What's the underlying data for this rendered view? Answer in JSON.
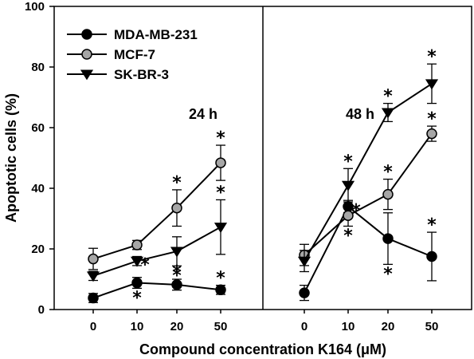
{
  "chart_data": {
    "type": "line",
    "ylabel": "Apoptotic cells (%)",
    "xlabel": "Compound concentration K164 (μM)",
    "ylim": [
      0,
      100
    ],
    "yticks": [
      0,
      20,
      40,
      60,
      80,
      100
    ],
    "categories": [
      "0",
      "10",
      "20",
      "50"
    ],
    "legend": {
      "position": "top-left"
    },
    "series_styles": [
      {
        "name": "MDA-MB-231",
        "marker": "circle",
        "fill": "#000000"
      },
      {
        "name": "MCF-7",
        "marker": "circle",
        "fill": "#a6a6a6"
      },
      {
        "name": "SK-BR-3",
        "marker": "triangle-down",
        "fill": "#000000"
      }
    ],
    "panels": [
      {
        "label": "24 h",
        "series": [
          {
            "name": "MDA-MB-231",
            "values": [
              3.8,
              8.8,
              8.2,
              6.5
            ],
            "errors": [
              1.5,
              1.8,
              1.8,
              1.5
            ],
            "sig": [
              false,
              "below",
              "above",
              "above"
            ]
          },
          {
            "name": "MCF-7",
            "values": [
              16.7,
              21.3,
              33.5,
              48.4
            ],
            "errors": [
              3.5,
              1.5,
              6.0,
              5.8
            ],
            "sig": [
              false,
              false,
              "above",
              "above"
            ]
          },
          {
            "name": "SK-BR-3",
            "values": [
              11.1,
              16.0,
              19.2,
              27.2
            ],
            "errors": [
              1.5,
              1.5,
              4.8,
              9.0
            ],
            "sig": [
              false,
              "right",
              "below",
              "above"
            ]
          }
        ]
      },
      {
        "label": "48 h",
        "series": [
          {
            "name": "MDA-MB-231",
            "values": [
              5.5,
              34.0,
              23.4,
              17.5
            ],
            "errors": [
              2.5,
              2.0,
              8.5,
              8.0
            ],
            "sig": [
              false,
              "right",
              "below",
              "above"
            ]
          },
          {
            "name": "MCF-7",
            "values": [
              18.0,
              31.0,
              38.0,
              58.0
            ],
            "errors": [
              3.5,
              3.5,
              5.0,
              2.5
            ],
            "sig": [
              false,
              "below",
              "above",
              "above"
            ]
          },
          {
            "name": "SK-BR-3",
            "values": [
              16.0,
              41.0,
              65.0,
              74.5
            ],
            "errors": [
              3.5,
              5.5,
              3.0,
              6.5
            ],
            "sig": [
              false,
              "above",
              "above",
              "above"
            ]
          }
        ]
      }
    ]
  }
}
